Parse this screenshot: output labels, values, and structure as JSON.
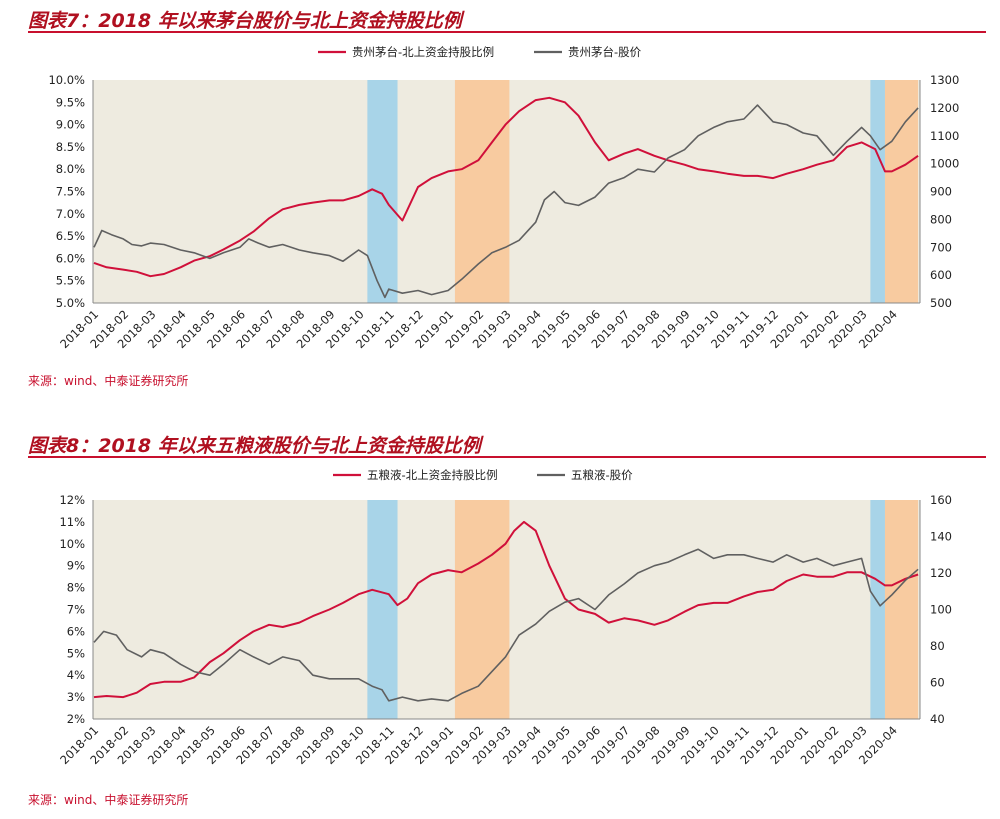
{
  "colors": {
    "accent": "#c8102e",
    "series_red": "#d0103a",
    "series_gray": "#606060",
    "plot_bg": "#eeebe0",
    "blue_band": "#a8d4e8",
    "orange_band": "#f8cba0"
  },
  "chart_data": [
    {
      "type": "line",
      "title": "图表7：2018 年以来茅台股价与北上资金持股比例",
      "source": "来源：wind、中泰证券研究所",
      "x_categories": [
        "2018-01",
        "2018-02",
        "2018-03",
        "2018-04",
        "2018-05",
        "2018-06",
        "2018-07",
        "2018-08",
        "2018-09",
        "2018-10",
        "2018-11",
        "2018-12",
        "2019-01",
        "2019-02",
        "2019-03",
        "2019-04",
        "2019-05",
        "2019-06",
        "2019-07",
        "2019-08",
        "2019-09",
        "2019-10",
        "2019-11",
        "2019-12",
        "2020-01",
        "2020-02",
        "2020-03",
        "2020-04"
      ],
      "y_left": {
        "ticks": [
          "5.0%",
          "5.5%",
          "6.0%",
          "6.5%",
          "7.0%",
          "7.5%",
          "8.0%",
          "8.5%",
          "9.0%",
          "9.5%",
          "10.0%"
        ],
        "range": [
          5.0,
          10.0
        ]
      },
      "y_right": {
        "ticks": [
          "500",
          "600",
          "700",
          "800",
          "900",
          "1000",
          "1100",
          "1200",
          "1300"
        ],
        "range": [
          500,
          1300
        ]
      },
      "legend_position": "top-center",
      "highlight_bands": [
        {
          "color": "blue",
          "from": "2018-10-10",
          "to": "2018-11-10"
        },
        {
          "color": "orange",
          "from": "2019-01-08",
          "to": "2019-03-05"
        },
        {
          "color": "blue",
          "from": "2020-03-10",
          "to": "2020-03-25"
        },
        {
          "color": "orange",
          "from": "2020-03-25",
          "to": "2020-04-28"
        }
      ],
      "series": [
        {
          "name": "贵州茅台-北上资金持股比例",
          "color": "#d0103a",
          "axis": "left",
          "x": [
            "2018-01-02",
            "2018-01-15",
            "2018-02-01",
            "2018-02-15",
            "2018-03-01",
            "2018-03-15",
            "2018-04-01",
            "2018-04-15",
            "2018-05-01",
            "2018-05-15",
            "2018-06-01",
            "2018-06-15",
            "2018-07-01",
            "2018-07-15",
            "2018-08-01",
            "2018-08-15",
            "2018-09-01",
            "2018-09-15",
            "2018-10-01",
            "2018-10-15",
            "2018-10-25",
            "2018-11-01",
            "2018-11-15",
            "2018-12-01",
            "2018-12-15",
            "2019-01-01",
            "2019-01-15",
            "2019-02-01",
            "2019-02-15",
            "2019-03-01",
            "2019-03-15",
            "2019-04-01",
            "2019-04-15",
            "2019-05-01",
            "2019-05-15",
            "2019-06-01",
            "2019-06-15",
            "2019-07-01",
            "2019-07-15",
            "2019-08-01",
            "2019-08-15",
            "2019-09-01",
            "2019-09-15",
            "2019-10-01",
            "2019-10-15",
            "2019-11-01",
            "2019-11-15",
            "2019-12-01",
            "2019-12-15",
            "2020-01-01",
            "2020-01-15",
            "2020-02-01",
            "2020-02-15",
            "2020-03-01",
            "2020-03-15",
            "2020-03-25",
            "2020-04-01",
            "2020-04-15",
            "2020-04-28"
          ],
          "y": [
            5.9,
            5.8,
            5.75,
            5.7,
            5.6,
            5.65,
            5.8,
            5.95,
            6.05,
            6.2,
            6.4,
            6.6,
            6.9,
            7.1,
            7.2,
            7.25,
            7.3,
            7.3,
            7.4,
            7.55,
            7.45,
            7.2,
            6.85,
            7.6,
            7.8,
            7.95,
            8.0,
            8.2,
            8.6,
            9.0,
            9.3,
            9.55,
            9.6,
            9.5,
            9.2,
            8.6,
            8.2,
            8.35,
            8.45,
            8.3,
            8.2,
            8.1,
            8.0,
            7.95,
            7.9,
            7.85,
            7.85,
            7.8,
            7.9,
            8.0,
            8.1,
            8.2,
            8.5,
            8.6,
            8.45,
            7.95,
            7.95,
            8.1,
            8.3
          ]
        },
        {
          "name": "贵州茅台-股价",
          "color": "#606060",
          "axis": "right",
          "x": [
            "2018-01-02",
            "2018-01-10",
            "2018-01-20",
            "2018-02-01",
            "2018-02-10",
            "2018-02-20",
            "2018-03-01",
            "2018-03-15",
            "2018-04-01",
            "2018-04-15",
            "2018-05-01",
            "2018-05-15",
            "2018-06-01",
            "2018-06-10",
            "2018-06-20",
            "2018-07-01",
            "2018-07-15",
            "2018-08-01",
            "2018-08-15",
            "2018-09-01",
            "2018-09-15",
            "2018-10-01",
            "2018-10-10",
            "2018-10-20",
            "2018-10-28",
            "2018-11-01",
            "2018-11-15",
            "2018-12-01",
            "2018-12-15",
            "2019-01-01",
            "2019-01-15",
            "2019-02-01",
            "2019-02-15",
            "2019-03-01",
            "2019-03-15",
            "2019-04-01",
            "2019-04-10",
            "2019-04-20",
            "2019-05-01",
            "2019-05-15",
            "2019-06-01",
            "2019-06-15",
            "2019-07-01",
            "2019-07-15",
            "2019-08-01",
            "2019-08-15",
            "2019-09-01",
            "2019-09-15",
            "2019-10-01",
            "2019-10-15",
            "2019-11-01",
            "2019-11-15",
            "2019-12-01",
            "2019-12-15",
            "2020-01-01",
            "2020-01-15",
            "2020-02-01",
            "2020-02-15",
            "2020-03-01",
            "2020-03-10",
            "2020-03-20",
            "2020-04-01",
            "2020-04-15",
            "2020-04-28"
          ],
          "y": [
            700,
            760,
            745,
            730,
            710,
            705,
            715,
            710,
            690,
            680,
            660,
            680,
            700,
            730,
            715,
            700,
            710,
            690,
            680,
            670,
            650,
            690,
            670,
            580,
            520,
            550,
            535,
            545,
            530,
            545,
            585,
            640,
            680,
            700,
            725,
            790,
            870,
            900,
            860,
            850,
            880,
            930,
            950,
            980,
            970,
            1020,
            1050,
            1100,
            1130,
            1150,
            1160,
            1210,
            1150,
            1140,
            1110,
            1100,
            1030,
            1080,
            1130,
            1100,
            1050,
            1080,
            1150,
            1200
          ]
        }
      ]
    },
    {
      "type": "line",
      "title": "图表8：2018 年以来五粮液股价与北上资金持股比例",
      "source": "来源：wind、中泰证券研究所",
      "x_categories": [
        "2018-01",
        "2018-02",
        "2018-03",
        "2018-04",
        "2018-05",
        "2018-06",
        "2018-07",
        "2018-08",
        "2018-09",
        "2018-10",
        "2018-11",
        "2018-12",
        "2019-01",
        "2019-02",
        "2019-03",
        "2019-04",
        "2019-05",
        "2019-06",
        "2019-07",
        "2019-08",
        "2019-09",
        "2019-10",
        "2019-11",
        "2019-12",
        "2020-01",
        "2020-02",
        "2020-03",
        "2020-04"
      ],
      "y_left": {
        "ticks": [
          "2%",
          "3%",
          "4%",
          "5%",
          "6%",
          "7%",
          "8%",
          "9%",
          "10%",
          "11%",
          "12%"
        ],
        "range": [
          2,
          12
        ]
      },
      "y_right": {
        "ticks": [
          "40",
          "60",
          "80",
          "100",
          "120",
          "140",
          "160"
        ],
        "range": [
          40,
          160
        ]
      },
      "legend_position": "top-center",
      "highlight_bands": [
        {
          "color": "blue",
          "from": "2018-10-10",
          "to": "2018-11-10"
        },
        {
          "color": "orange",
          "from": "2019-01-08",
          "to": "2019-03-05"
        },
        {
          "color": "blue",
          "from": "2020-03-10",
          "to": "2020-03-25"
        },
        {
          "color": "orange",
          "from": "2020-03-25",
          "to": "2020-04-28"
        }
      ],
      "series": [
        {
          "name": "五粮液-北上资金持股比例",
          "color": "#d0103a",
          "axis": "left",
          "x": [
            "2018-01-02",
            "2018-01-15",
            "2018-02-01",
            "2018-02-15",
            "2018-03-01",
            "2018-03-15",
            "2018-04-01",
            "2018-04-15",
            "2018-05-01",
            "2018-05-15",
            "2018-06-01",
            "2018-06-15",
            "2018-07-01",
            "2018-07-15",
            "2018-08-01",
            "2018-08-15",
            "2018-09-01",
            "2018-09-15",
            "2018-10-01",
            "2018-10-15",
            "2018-11-01",
            "2018-11-10",
            "2018-11-20",
            "2018-12-01",
            "2018-12-15",
            "2019-01-01",
            "2019-01-15",
            "2019-02-01",
            "2019-02-15",
            "2019-03-01",
            "2019-03-10",
            "2019-03-20",
            "2019-04-01",
            "2019-04-15",
            "2019-05-01",
            "2019-05-15",
            "2019-06-01",
            "2019-06-15",
            "2019-07-01",
            "2019-07-15",
            "2019-08-01",
            "2019-08-15",
            "2019-09-01",
            "2019-09-15",
            "2019-10-01",
            "2019-10-15",
            "2019-11-01",
            "2019-11-15",
            "2019-12-01",
            "2019-12-15",
            "2020-01-01",
            "2020-01-15",
            "2020-02-01",
            "2020-02-15",
            "2020-03-01",
            "2020-03-15",
            "2020-03-25",
            "2020-04-01",
            "2020-04-15",
            "2020-04-28"
          ],
          "y": [
            3.0,
            3.05,
            3.0,
            3.2,
            3.6,
            3.7,
            3.7,
            3.9,
            4.6,
            5.0,
            5.6,
            6.0,
            6.3,
            6.2,
            6.4,
            6.7,
            7.0,
            7.3,
            7.7,
            7.9,
            7.7,
            7.2,
            7.5,
            8.2,
            8.6,
            8.8,
            8.7,
            9.1,
            9.5,
            10.0,
            10.6,
            11.0,
            10.6,
            9.0,
            7.5,
            7.0,
            6.8,
            6.4,
            6.6,
            6.5,
            6.3,
            6.5,
            6.9,
            7.2,
            7.3,
            7.3,
            7.6,
            7.8,
            7.9,
            8.3,
            8.6,
            8.5,
            8.5,
            8.7,
            8.7,
            8.4,
            8.1,
            8.1,
            8.4,
            8.6
          ]
        },
        {
          "name": "五粮液-股价",
          "color": "#606060",
          "axis": "right",
          "x": [
            "2018-01-02",
            "2018-01-12",
            "2018-01-25",
            "2018-02-05",
            "2018-02-20",
            "2018-03-01",
            "2018-03-15",
            "2018-04-01",
            "2018-04-15",
            "2018-05-01",
            "2018-05-15",
            "2018-06-01",
            "2018-06-15",
            "2018-07-01",
            "2018-07-15",
            "2018-08-01",
            "2018-08-15",
            "2018-09-01",
            "2018-09-15",
            "2018-10-01",
            "2018-10-15",
            "2018-10-25",
            "2018-11-01",
            "2018-11-15",
            "2018-12-01",
            "2018-12-15",
            "2019-01-01",
            "2019-01-15",
            "2019-02-01",
            "2019-02-15",
            "2019-03-01",
            "2019-03-15",
            "2019-04-01",
            "2019-04-15",
            "2019-05-01",
            "2019-05-15",
            "2019-06-01",
            "2019-06-15",
            "2019-07-01",
            "2019-07-15",
            "2019-08-01",
            "2019-08-15",
            "2019-09-01",
            "2019-09-15",
            "2019-10-01",
            "2019-10-15",
            "2019-11-01",
            "2019-11-15",
            "2019-12-01",
            "2019-12-15",
            "2020-01-01",
            "2020-01-15",
            "2020-02-01",
            "2020-02-15",
            "2020-03-01",
            "2020-03-10",
            "2020-03-20",
            "2020-04-01",
            "2020-04-15",
            "2020-04-28"
          ],
          "y": [
            82,
            88,
            86,
            78,
            74,
            78,
            76,
            70,
            66,
            64,
            70,
            78,
            74,
            70,
            74,
            72,
            64,
            62,
            62,
            62,
            58,
            56,
            50,
            52,
            50,
            51,
            50,
            54,
            58,
            66,
            74,
            86,
            92,
            99,
            104,
            106,
            100,
            108,
            114,
            120,
            124,
            126,
            130,
            133,
            128,
            130,
            130,
            128,
            126,
            130,
            126,
            128,
            124,
            126,
            128,
            110,
            102,
            108,
            116,
            122
          ]
        }
      ]
    }
  ]
}
